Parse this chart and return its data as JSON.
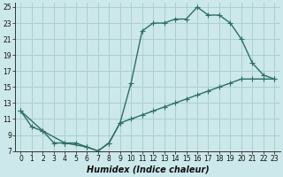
{
  "xlabel": "Humidex (Indice chaleur)",
  "bg_color": "#cce8ea",
  "grid_color": "#aacfcf",
  "line_color": "#2d6e65",
  "xlim": [
    -0.5,
    23.5
  ],
  "ylim": [
    7,
    25.5
  ],
  "xticks": [
    0,
    1,
    2,
    3,
    4,
    5,
    6,
    7,
    8,
    9,
    10,
    11,
    12,
    13,
    14,
    15,
    16,
    17,
    18,
    19,
    20,
    21,
    22,
    23
  ],
  "yticks": [
    7,
    9,
    11,
    13,
    15,
    17,
    19,
    21,
    23,
    25
  ],
  "line1_x": [
    0,
    1,
    2,
    3,
    4,
    5,
    6,
    7,
    8,
    9,
    10,
    11,
    12,
    13,
    14,
    15,
    16,
    17,
    18,
    19,
    20,
    21,
    22,
    23
  ],
  "line1_y": [
    12,
    10,
    9.5,
    8,
    8,
    8,
    7.5,
    7,
    8,
    10.5,
    15.5,
    22,
    23,
    23,
    23.5,
    23.5,
    25,
    24,
    24,
    23,
    21,
    18,
    16.5,
    16
  ],
  "line2_x": [
    0,
    2,
    4,
    6,
    7,
    8,
    9,
    10,
    11,
    12,
    13,
    14,
    15,
    16,
    17,
    18,
    19,
    20,
    21,
    22,
    23
  ],
  "line2_y": [
    12,
    9.5,
    8,
    7.5,
    7,
    8,
    10.5,
    11,
    11.5,
    12,
    12.5,
    13,
    13.5,
    14,
    14.5,
    15,
    15.5,
    16,
    16,
    16,
    16
  ],
  "marker": "+",
  "markersize": 4,
  "linewidth": 1.0,
  "tick_fontsize": 5.5,
  "xlabel_fontsize": 7
}
